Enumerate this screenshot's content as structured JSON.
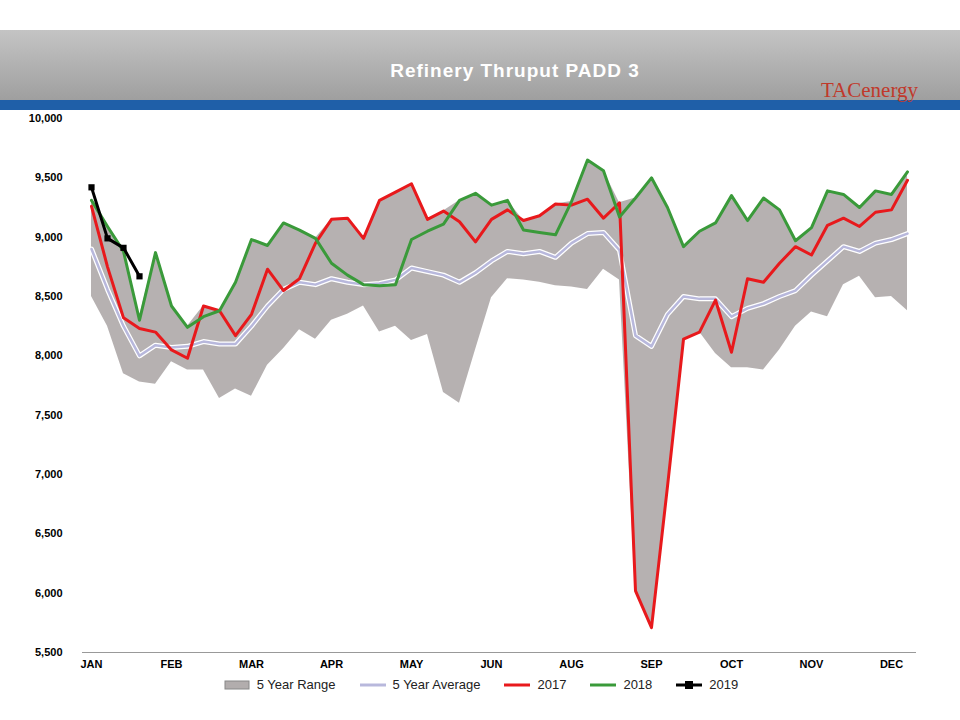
{
  "chart_data": {
    "type": "line",
    "title": "Refinery Thruput PADD 3",
    "logo_text": "TACenergy",
    "categories": [
      "JAN",
      null,
      null,
      null,
      null,
      "FEB",
      null,
      null,
      null,
      null,
      "MAR",
      null,
      null,
      null,
      null,
      "APR",
      null,
      null,
      null,
      null,
      "MAY",
      null,
      null,
      null,
      null,
      "JUN",
      null,
      null,
      null,
      null,
      "AUG",
      null,
      null,
      null,
      null,
      "SEP",
      null,
      null,
      null,
      null,
      "OCT",
      null,
      null,
      null,
      null,
      "NOV",
      null,
      null,
      null,
      null,
      "DEC",
      null
    ],
    "ylim": [
      5500,
      10000
    ],
    "yticks": [
      {
        "value": 5500,
        "label": "5,500"
      },
      {
        "value": 6000,
        "label": "6,000"
      },
      {
        "value": 6500,
        "label": "6,500"
      },
      {
        "value": 7000,
        "label": "7,000"
      },
      {
        "value": 7500,
        "label": "7,500"
      },
      {
        "value": 8000,
        "label": "8,000"
      },
      {
        "value": 8500,
        "label": "8,500"
      },
      {
        "value": 9000,
        "label": "9,000"
      },
      {
        "value": 9500,
        "label": "9,500"
      },
      {
        "value": 10000,
        "label": "10,000"
      }
    ],
    "grid": false,
    "legend": "bottom",
    "series": [
      {
        "name": "5 Year Range",
        "type": "area",
        "color": "#b2adad",
        "low": [
          8500,
          8250,
          7850,
          7780,
          7760,
          7950,
          7880,
          7880,
          7640,
          7720,
          7660,
          7920,
          8060,
          8220,
          8140,
          8300,
          8350,
          8420,
          8200,
          8250,
          8130,
          8180,
          7690,
          7600,
          8050,
          8490,
          8650,
          8640,
          8620,
          8590,
          8580,
          8560,
          8730,
          8640,
          6020,
          5710,
          6900,
          8140,
          8200,
          8020,
          7900,
          7900,
          7880,
          8050,
          8250,
          8370,
          8330,
          8600,
          8670,
          8490,
          8500,
          8380
        ],
        "high": [
          9310,
          9090,
          8880,
          8330,
          8870,
          8420,
          8250,
          8420,
          8380,
          8620,
          8980,
          8930,
          9120,
          9060,
          8990,
          9150,
          9160,
          8990,
          9310,
          9380,
          9450,
          9150,
          9220,
          9310,
          9370,
          9270,
          9310,
          9140,
          9180,
          9280,
          9300,
          9650,
          9560,
          9290,
          9330,
          9500,
          9250,
          8920,
          9050,
          9120,
          9350,
          9140,
          9330,
          9230,
          8970,
          9080,
          9390,
          9360,
          9250,
          9390,
          9360,
          9550
        ]
      },
      {
        "name": "5 Year Average",
        "type": "line",
        "color": "#b8b8dc",
        "values": [
          8900,
          8560,
          8250,
          8000,
          8090,
          8070,
          8080,
          8120,
          8100,
          8100,
          8250,
          8420,
          8560,
          8620,
          8600,
          8650,
          8620,
          8600,
          8610,
          8640,
          8740,
          8710,
          8680,
          8620,
          8700,
          8800,
          8880,
          8860,
          8880,
          8830,
          8950,
          9030,
          9040,
          8890,
          8170,
          8080,
          8350,
          8500,
          8480,
          8480,
          8330,
          8400,
          8440,
          8500,
          8550,
          8680,
          8800,
          8920,
          8880,
          8950,
          8980,
          9030
        ]
      },
      {
        "name": "2017",
        "type": "line",
        "color": "#e8191c",
        "values": [
          9260,
          8750,
          8320,
          8230,
          8200,
          8050,
          7980,
          8420,
          8380,
          8170,
          8350,
          8730,
          8550,
          8650,
          8950,
          9150,
          9160,
          8990,
          9310,
          9380,
          9450,
          9150,
          9220,
          9130,
          8960,
          9150,
          9230,
          9140,
          9180,
          9280,
          9270,
          9320,
          9160,
          9290,
          6020,
          5710,
          6900,
          8140,
          8200,
          8470,
          8030,
          8650,
          8620,
          8780,
          8920,
          8850,
          9100,
          9160,
          9090,
          9210,
          9230,
          9480
        ]
      },
      {
        "name": "2018",
        "type": "line",
        "color": "#3a9a3a",
        "values": [
          9310,
          9090,
          8880,
          8300,
          8870,
          8420,
          8240,
          8330,
          8380,
          8620,
          8980,
          8930,
          9120,
          9060,
          8990,
          8780,
          8680,
          8600,
          8590,
          8600,
          8980,
          9050,
          9110,
          9310,
          9370,
          9270,
          9310,
          9060,
          9040,
          9020,
          9300,
          9650,
          9560,
          9170,
          9330,
          9500,
          9250,
          8920,
          9050,
          9120,
          9350,
          9140,
          9330,
          9230,
          8970,
          9080,
          9390,
          9360,
          9250,
          9390,
          9360,
          9550
        ]
      },
      {
        "name": "2019",
        "type": "line",
        "color": "#000000",
        "marker": "square",
        "values": [
          9420,
          8990,
          8910,
          8670,
          null,
          null,
          null,
          null,
          null,
          null,
          null,
          null,
          null,
          null,
          null,
          null,
          null,
          null,
          null,
          null,
          null,
          null,
          null,
          null,
          null,
          null,
          null,
          null,
          null,
          null,
          null,
          null,
          null,
          null,
          null,
          null,
          null,
          null,
          null,
          null,
          null,
          null,
          null,
          null,
          null,
          null,
          null,
          null,
          null,
          null,
          null,
          null
        ]
      }
    ]
  }
}
